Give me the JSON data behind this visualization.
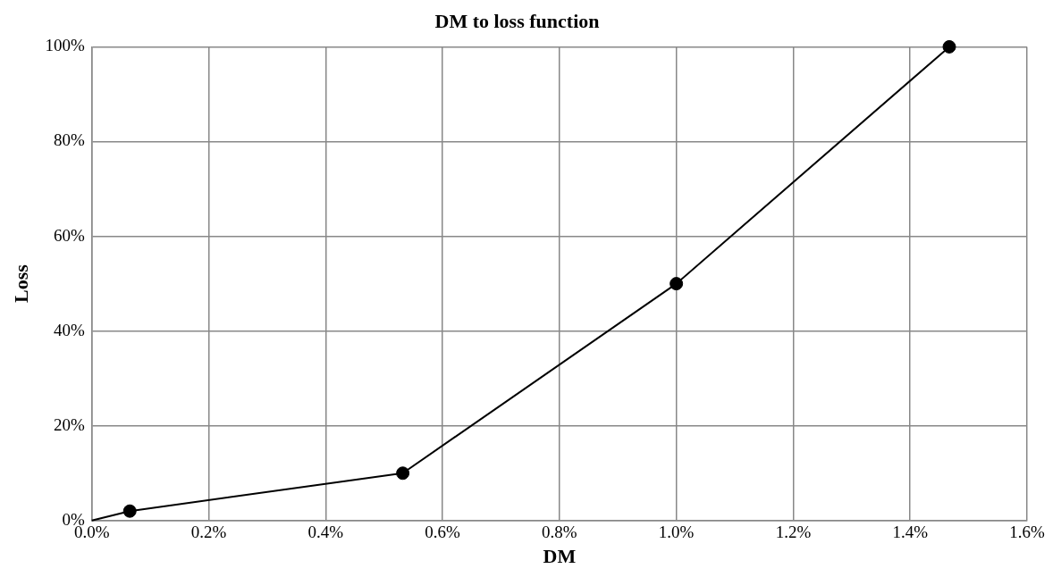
{
  "chart_data": {
    "type": "line",
    "title": "DM to loss function",
    "xlabel": "DM",
    "ylabel": "Loss",
    "series": [
      {
        "color": "#000000",
        "marker": "none",
        "x": [
          0,
          0.065,
          0.532,
          1.0,
          1.467
        ],
        "values": [
          0,
          2,
          10,
          50,
          100
        ]
      },
      {
        "type": "scatter",
        "color": "#000000",
        "marker": "circle",
        "x": [
          0.065,
          0.532,
          1.0,
          1.467
        ],
        "values": [
          2,
          10,
          50,
          100
        ]
      }
    ],
    "xlim": [
      0,
      1.6
    ],
    "ylim": [
      0,
      100
    ],
    "xticks": [
      {
        "value": 0,
        "label": "0.0%"
      },
      {
        "value": 0.2,
        "label": "0.2%"
      },
      {
        "value": 0.4,
        "label": "0.4%"
      },
      {
        "value": 0.6,
        "label": "0.6%"
      },
      {
        "value": 0.8,
        "label": "0.8%"
      },
      {
        "value": 1.0,
        "label": "1.0%"
      },
      {
        "value": 1.2,
        "label": "1.2%"
      },
      {
        "value": 1.4,
        "label": "1.4%"
      },
      {
        "value": 1.6,
        "label": "1.6%"
      }
    ],
    "yticks": [
      {
        "value": 0,
        "label": "0%"
      },
      {
        "value": 20,
        "label": "20%"
      },
      {
        "value": 40,
        "label": "40%"
      },
      {
        "value": 60,
        "label": "60%"
      },
      {
        "value": 80,
        "label": "80%"
      },
      {
        "value": 100,
        "label": "100%"
      }
    ],
    "grid": true,
    "legend": false
  }
}
